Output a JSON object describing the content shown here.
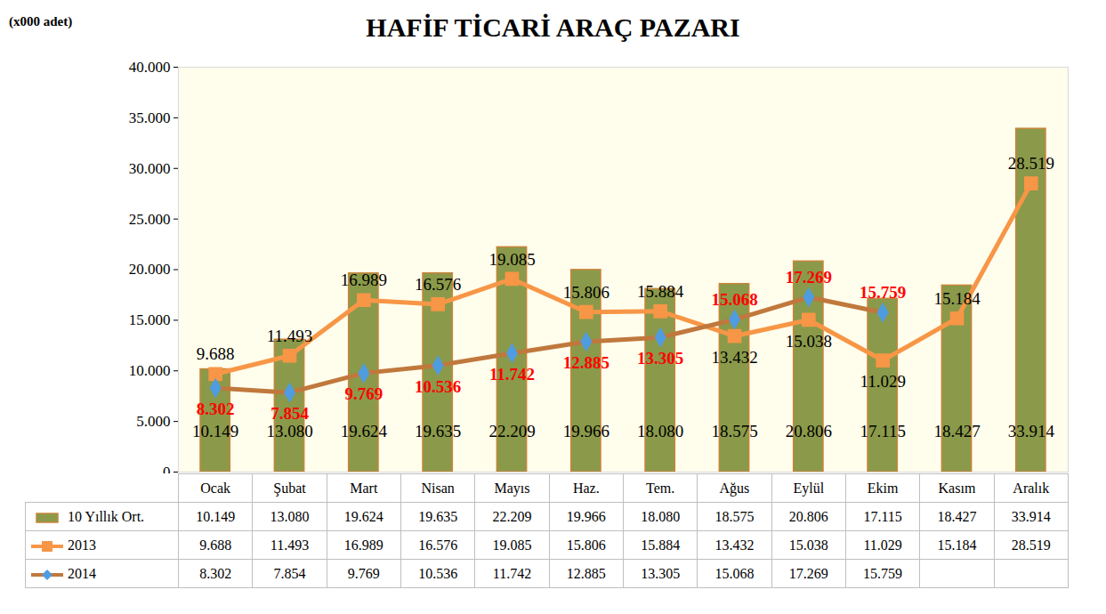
{
  "chart_data": {
    "type": "bar",
    "title": "HAFİF TİCARİ ARAÇ PAZARI",
    "ylabel": "(x000 adet)",
    "categories": [
      "Ocak",
      "Şubat",
      "Mart",
      "Nisan",
      "Mayıs",
      "Haz.",
      "Tem.",
      "Ağus",
      "Eylül",
      "Ekim",
      "Kasım",
      "Aralık"
    ],
    "series": [
      {
        "name": "10 Yıllık Ort.",
        "type": "bar",
        "color": "#8a9a4a",
        "values": [
          10149,
          13080,
          19624,
          19635,
          22209,
          19966,
          18080,
          18575,
          20806,
          17115,
          18427,
          33914
        ],
        "value_labels": [
          "10.149",
          "13.080",
          "19.624",
          "19.635",
          "22.209",
          "19.966",
          "18.080",
          "18.575",
          "20.806",
          "17.115",
          "18.427",
          "33.914"
        ]
      },
      {
        "name": "2013",
        "type": "line",
        "color": "#f79646",
        "marker": "square",
        "values": [
          9688,
          11493,
          16989,
          16576,
          19085,
          15806,
          15884,
          13432,
          15038,
          11029,
          15184,
          28519
        ],
        "value_labels": [
          "9.688",
          "11.493",
          "16.989",
          "16.576",
          "19.085",
          "15.806",
          "15.884",
          "13.432",
          "15.038",
          "11.029",
          "15.184",
          "28.519"
        ]
      },
      {
        "name": "2014",
        "type": "line",
        "color": "#c0783c",
        "marker": "diamond",
        "values": [
          8302,
          7854,
          9769,
          10536,
          11742,
          12885,
          13305,
          15068,
          17269,
          15759,
          null,
          null
        ],
        "value_labels": [
          "8.302",
          "7.854",
          "9.769",
          "10.536",
          "11.742",
          "12.885",
          "13.305",
          "15.068",
          "17.269",
          "15.759",
          null,
          null
        ]
      }
    ],
    "ylim": [
      0,
      40000
    ],
    "yticks": [
      {
        "value": 0,
        "label": "0"
      },
      {
        "value": 5000,
        "label": "5.000"
      },
      {
        "value": 10000,
        "label": "10.000"
      },
      {
        "value": 15000,
        "label": "15.000"
      },
      {
        "value": 20000,
        "label": "20.000"
      },
      {
        "value": 25000,
        "label": "25.000"
      },
      {
        "value": 30000,
        "label": "30.000"
      },
      {
        "value": 35000,
        "label": "35.000"
      },
      {
        "value": 40000,
        "label": "40.000"
      }
    ],
    "data_labels": true
  }
}
